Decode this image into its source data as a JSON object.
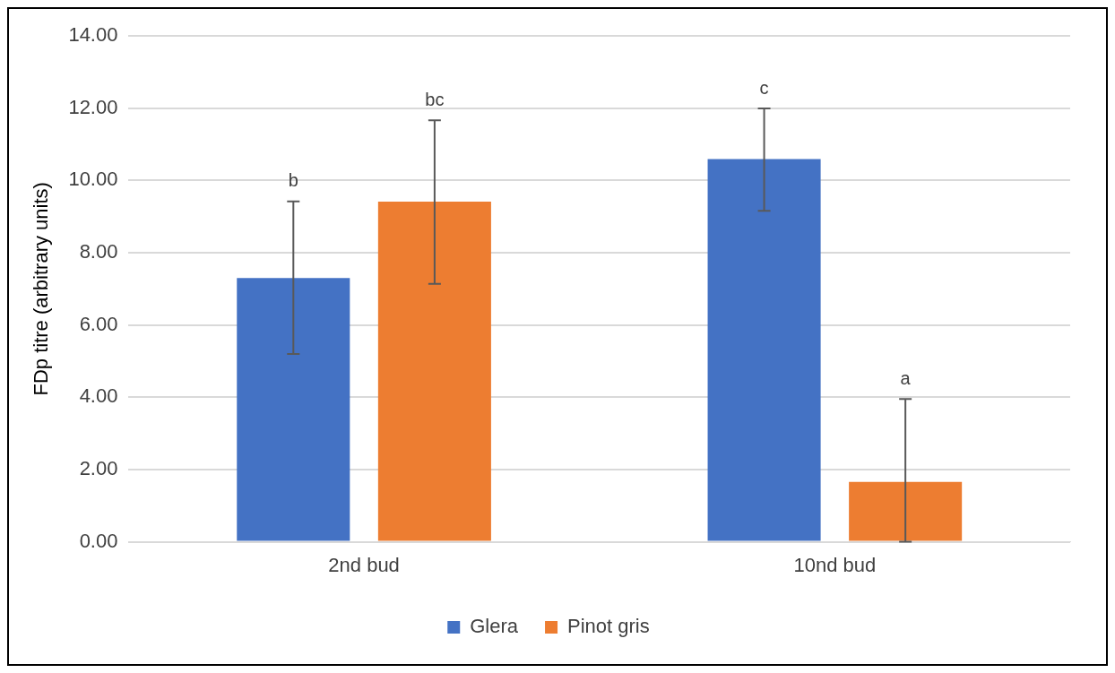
{
  "chart_data": {
    "type": "bar",
    "ylabel": "FDp titre (arbitrary units)",
    "categories": [
      "2nd bud",
      "10nd bud"
    ],
    "series": [
      {
        "name": "Glera",
        "color": "#4472c4",
        "values": [
          7.3,
          10.59
        ],
        "errors": [
          [
            5.2,
            9.42
          ],
          [
            9.16,
            11.99
          ]
        ]
      },
      {
        "name": "Pinot gris",
        "color": "#ed7d31",
        "values": [
          9.41,
          1.66
        ],
        "errors": [
          [
            7.14,
            11.66
          ],
          [
            0,
            3.95
          ]
        ]
      }
    ],
    "ylim": [
      0,
      14
    ],
    "yticks": [
      {
        "value": 0,
        "label": "0.00"
      },
      {
        "value": 2,
        "label": "2.00"
      },
      {
        "value": 4,
        "label": "4.00"
      },
      {
        "value": 6,
        "label": "6.00"
      },
      {
        "value": 8,
        "label": "8.00"
      },
      {
        "value": 10,
        "label": "10.00"
      },
      {
        "value": 12,
        "label": "12.00"
      },
      {
        "value": 14,
        "label": "14.00"
      }
    ],
    "grid": "y",
    "legend": "bottom",
    "annotations": [
      "b",
      "bc",
      "c",
      "a"
    ]
  }
}
